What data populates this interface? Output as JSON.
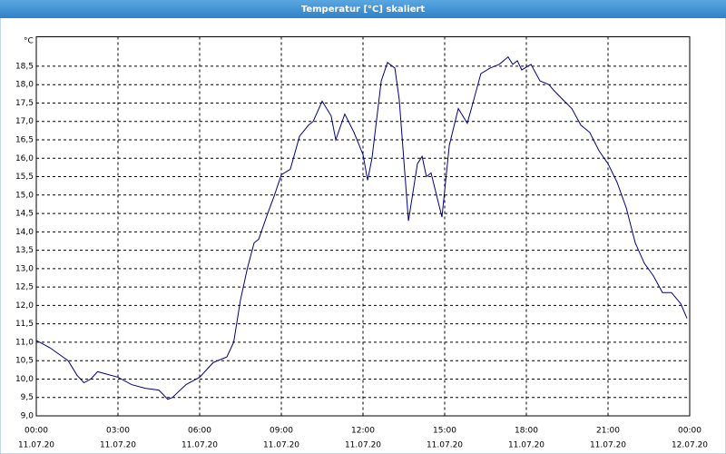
{
  "chart_data": {
    "type": "line",
    "title": "Temperatur [°C] skaliert",
    "y_unit": "°C",
    "x": [
      0,
      0.5,
      1.17,
      1.5,
      1.75,
      2,
      2.25,
      2.5,
      3,
      3.5,
      4,
      4.5,
      4.83,
      5,
      5.5,
      6,
      6.5,
      7,
      7.25,
      7.5,
      7.75,
      8,
      8.17,
      8.5,
      8.75,
      9,
      9.33,
      9.67,
      10,
      10.17,
      10.5,
      10.83,
      11,
      11.33,
      11.67,
      12,
      12.17,
      12.33,
      12.67,
      12.9,
      13.17,
      13.33,
      13.67,
      14,
      14.17,
      14.33,
      14.5,
      14.9,
      15.17,
      15.5,
      15.83,
      16,
      16.33,
      16.67,
      17,
      17.33,
      17.5,
      17.67,
      17.83,
      18.17,
      18.5,
      18.83,
      19,
      19.33,
      19.67,
      20,
      20.33,
      20.67,
      21,
      21.33,
      21.67,
      22,
      22.33,
      22.67,
      23,
      23.33,
      23.67,
      23.9
    ],
    "series": [
      {
        "name": "Temperatur",
        "color": "#00008b",
        "values": [
          11.05,
          10.85,
          10.5,
          10.1,
          9.9,
          10.0,
          10.2,
          10.15,
          10.05,
          9.85,
          9.75,
          9.7,
          9.45,
          9.5,
          9.85,
          10.05,
          10.45,
          10.6,
          11.0,
          12.15,
          13.0,
          13.7,
          13.8,
          14.5,
          15.0,
          15.55,
          15.7,
          16.6,
          16.9,
          17.0,
          17.55,
          17.15,
          16.5,
          17.2,
          16.7,
          16.1,
          15.4,
          16.0,
          18.1,
          18.6,
          18.45,
          17.6,
          14.3,
          15.85,
          16.05,
          15.5,
          15.6,
          14.4,
          16.35,
          17.35,
          16.95,
          17.4,
          18.3,
          18.45,
          18.55,
          18.75,
          18.55,
          18.65,
          18.4,
          18.55,
          18.1,
          18.0,
          17.85,
          17.6,
          17.35,
          16.9,
          16.7,
          16.2,
          15.85,
          15.35,
          14.65,
          13.7,
          13.15,
          12.8,
          12.35,
          12.35,
          12.05,
          11.65
        ]
      }
    ],
    "xlim": [
      0,
      24
    ],
    "xticks": [
      {
        "value": 0,
        "label": "00:00"
      },
      {
        "value": 3,
        "label": "03:00"
      },
      {
        "value": 6,
        "label": "06:00"
      },
      {
        "value": 9,
        "label": "09:00"
      },
      {
        "value": 12,
        "label": "12:00"
      },
      {
        "value": 15,
        "label": "15:00"
      },
      {
        "value": 18,
        "label": "18:00"
      },
      {
        "value": 21,
        "label": "21:00"
      },
      {
        "value": 24,
        "label": "00:00"
      }
    ],
    "xtick_dates": [
      "11.07.20",
      "11.07.20",
      "11.07.20",
      "11.07.20",
      "11.07.20",
      "11.07.20",
      "11.07.20",
      "11.07.20",
      "12.07.20"
    ],
    "ylim": [
      9,
      19.3
    ],
    "yticks": [
      {
        "value": 9,
        "label": "9,0"
      },
      {
        "value": 9.5,
        "label": "9,5"
      },
      {
        "value": 10,
        "label": "10,0"
      },
      {
        "value": 10.5,
        "label": "10,5"
      },
      {
        "value": 11,
        "label": "11,0"
      },
      {
        "value": 11.5,
        "label": "11,5"
      },
      {
        "value": 12,
        "label": "12,0"
      },
      {
        "value": 12.5,
        "label": "12,5"
      },
      {
        "value": 13,
        "label": "13,0"
      },
      {
        "value": 13.5,
        "label": "13,5"
      },
      {
        "value": 14,
        "label": "14,0"
      },
      {
        "value": 14.5,
        "label": "14,5"
      },
      {
        "value": 15,
        "label": "15,0"
      },
      {
        "value": 15.5,
        "label": "15,5"
      },
      {
        "value": 16,
        "label": "16,0"
      },
      {
        "value": 16.5,
        "label": "16,5"
      },
      {
        "value": 17,
        "label": "17,0"
      },
      {
        "value": 17.5,
        "label": "17,5"
      },
      {
        "value": 18,
        "label": "18,0"
      },
      {
        "value": 18.5,
        "label": "18,5"
      }
    ],
    "grid": true
  }
}
